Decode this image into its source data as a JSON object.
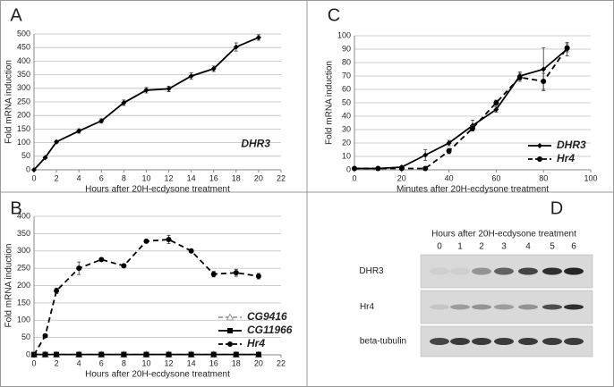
{
  "chart_data": [
    {
      "type": "line",
      "label": "A",
      "xlabel": "Hours after 20H-ecdysone treatment",
      "ylabel": "Fold mRNA induction",
      "x": [
        0,
        1,
        2,
        4,
        6,
        8,
        10,
        12,
        14,
        16,
        18,
        20
      ],
      "xlim": [
        0,
        22
      ],
      "xticks": [
        0,
        2,
        4,
        6,
        8,
        10,
        12,
        14,
        16,
        18,
        20,
        22
      ],
      "ylim": [
        0,
        500
      ],
      "yticks": [
        0,
        50,
        100,
        150,
        200,
        250,
        300,
        350,
        400,
        450,
        500
      ],
      "grid": true,
      "legend": "center right",
      "series": [
        {
          "name": "DHR3",
          "color": "#000000",
          "marker": "diamond",
          "dash": false,
          "values": [
            0,
            45,
            103,
            143,
            180,
            247,
            293,
            298,
            345,
            372,
            452,
            487
          ],
          "errors": [
            0,
            3,
            5,
            8,
            8,
            10,
            10,
            10,
            12,
            10,
            15,
            10
          ]
        }
      ]
    },
    {
      "type": "line",
      "label": "B",
      "xlabel": "Hours after 20H-ecdysone treatment",
      "ylabel": "Fold mRNA induction",
      "x": [
        0,
        1,
        2,
        4,
        6,
        8,
        10,
        12,
        14,
        16,
        18,
        20
      ],
      "xlim": [
        0,
        22
      ],
      "xticks": [
        0,
        2,
        4,
        6,
        8,
        10,
        12,
        14,
        16,
        18,
        20,
        22
      ],
      "ylim": [
        0,
        400
      ],
      "yticks": [
        0,
        50,
        100,
        150,
        200,
        250,
        300,
        350,
        400
      ],
      "grid": true,
      "legend": "lower right",
      "series": [
        {
          "name": "CG9416",
          "color": "#999999",
          "marker": "triangle",
          "dash": true,
          "values": [
            1,
            1,
            1,
            1,
            1,
            1,
            1,
            1,
            1,
            1,
            1,
            1
          ]
        },
        {
          "name": "CG11966",
          "color": "#000000",
          "marker": "square",
          "dash": false,
          "values": [
            1,
            1,
            1,
            1,
            1,
            1,
            1,
            1,
            1,
            1,
            1,
            1
          ]
        },
        {
          "name": "Hr4",
          "color": "#000000",
          "marker": "circle",
          "dash": true,
          "values": [
            0,
            55,
            185,
            250,
            275,
            257,
            328,
            333,
            300,
            233,
            237,
            227
          ],
          "errors": [
            0,
            5,
            8,
            18,
            5,
            5,
            5,
            12,
            5,
            8,
            10,
            8
          ]
        }
      ]
    },
    {
      "type": "line",
      "label": "C",
      "xlabel": "Minutes after 20H-ecdysone treatment",
      "ylabel": "Fold mRNA induction",
      "x": [
        0,
        10,
        20,
        30,
        40,
        50,
        60,
        70,
        80,
        90
      ],
      "xlim": [
        0,
        100
      ],
      "xticks": [
        0,
        20,
        40,
        60,
        80,
        100
      ],
      "ylim": [
        0,
        100
      ],
      "yticks": [
        0,
        10,
        20,
        30,
        40,
        50,
        60,
        70,
        80,
        90,
        100
      ],
      "grid": true,
      "legend": "lower right",
      "series": [
        {
          "name": "DHR3",
          "color": "#000000",
          "marker": "diamond",
          "dash": false,
          "values": [
            1,
            1,
            2,
            11,
            20,
            33,
            45,
            70,
            75,
            90
          ],
          "errors": [
            0,
            0,
            1,
            4,
            2,
            4,
            2,
            3,
            16,
            5
          ]
        },
        {
          "name": "Hr4",
          "color": "#000000",
          "marker": "circle",
          "dash": true,
          "values": [
            1,
            1,
            1,
            1,
            14,
            31,
            50,
            69,
            66,
            91
          ],
          "errors": [
            0,
            0,
            0,
            0,
            2,
            2,
            2,
            3,
            6,
            3
          ]
        }
      ]
    }
  ],
  "blot": {
    "label": "D",
    "title": "Hours after 20H-ecdysone treatment",
    "lanes": [
      "0",
      "1",
      "2",
      "3",
      "4",
      "5",
      "6"
    ],
    "rows": [
      "DHR3",
      "Hr4",
      "beta-tubulin"
    ]
  }
}
